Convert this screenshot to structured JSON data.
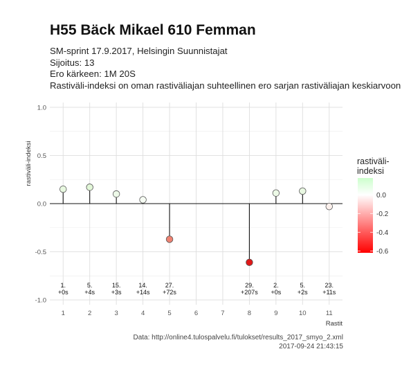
{
  "title": "H55 Bäck Mikael 610 Femman",
  "subtitle_lines": [
    "SM-sprint 17.9.2017, Helsingin Suunnistajat",
    "Sijoitus: 13",
    "Ero kärkeen: 1M 20S",
    "Rastiväli-indeksi on oman rastiväliajan suhteellinen ero sarjan rastiväliajan keskiarvoon"
  ],
  "caption_lines": [
    "Data: http://online4.tulospalvelu.fi/tulokset/results_2017_smyo_2.xml",
    "2017-09-24 21:43:15"
  ],
  "chart_data": {
    "type": "lollipop",
    "xlabel": "Rastit",
    "ylabel": "rastiväli-indeksi",
    "x_ticks": [
      "1",
      "2",
      "3",
      "4",
      "5",
      "6",
      "7",
      "8",
      "9",
      "10",
      "11"
    ],
    "y_ticks": [
      "1.0",
      "0.5",
      "0.0",
      "-0.5",
      "-1.0"
    ],
    "xlim": [
      0.5,
      11.5
    ],
    "ylim": [
      -1.05,
      1.05
    ],
    "baseline": 0,
    "grid": true,
    "points": [
      {
        "x": 1,
        "y": 0.15,
        "color": "#e8f8e0",
        "rank": "1.",
        "diff": "+0s"
      },
      {
        "x": 2,
        "y": 0.17,
        "color": "#e2f7d8",
        "rank": "5.",
        "diff": "+4s"
      },
      {
        "x": 3,
        "y": 0.1,
        "color": "#edf9e8",
        "rank": "15.",
        "diff": "+3s"
      },
      {
        "x": 4,
        "y": 0.04,
        "color": "#f6fcf3",
        "rank": "14.",
        "diff": "+14s"
      },
      {
        "x": 5,
        "y": -0.37,
        "color": "#ee8272",
        "rank": "27.",
        "diff": "+72s"
      },
      {
        "x": 8,
        "y": -0.61,
        "color": "#e01818",
        "rank": "29.",
        "diff": "+207s"
      },
      {
        "x": 9,
        "y": 0.11,
        "color": "#ecf9e6",
        "rank": "2.",
        "diff": "+0s"
      },
      {
        "x": 10,
        "y": 0.13,
        "color": "#e9f8e2",
        "rank": "5.",
        "diff": "+2s"
      },
      {
        "x": 11,
        "y": -0.03,
        "color": "#fbf0ec",
        "rank": "23.",
        "diff": "+11s"
      }
    ],
    "legend": {
      "title_lines": [
        "rastiväli-",
        "indeksi"
      ],
      "labels": [
        "0.0",
        "-0.2",
        "-0.4",
        "-0.6"
      ],
      "values": [
        0.0,
        -0.2,
        -0.4,
        -0.6
      ],
      "range": [
        -0.62,
        0.18
      ],
      "colors": [
        "#ccffcc",
        "#ffffff",
        "#ff0000"
      ],
      "position": "right"
    }
  }
}
